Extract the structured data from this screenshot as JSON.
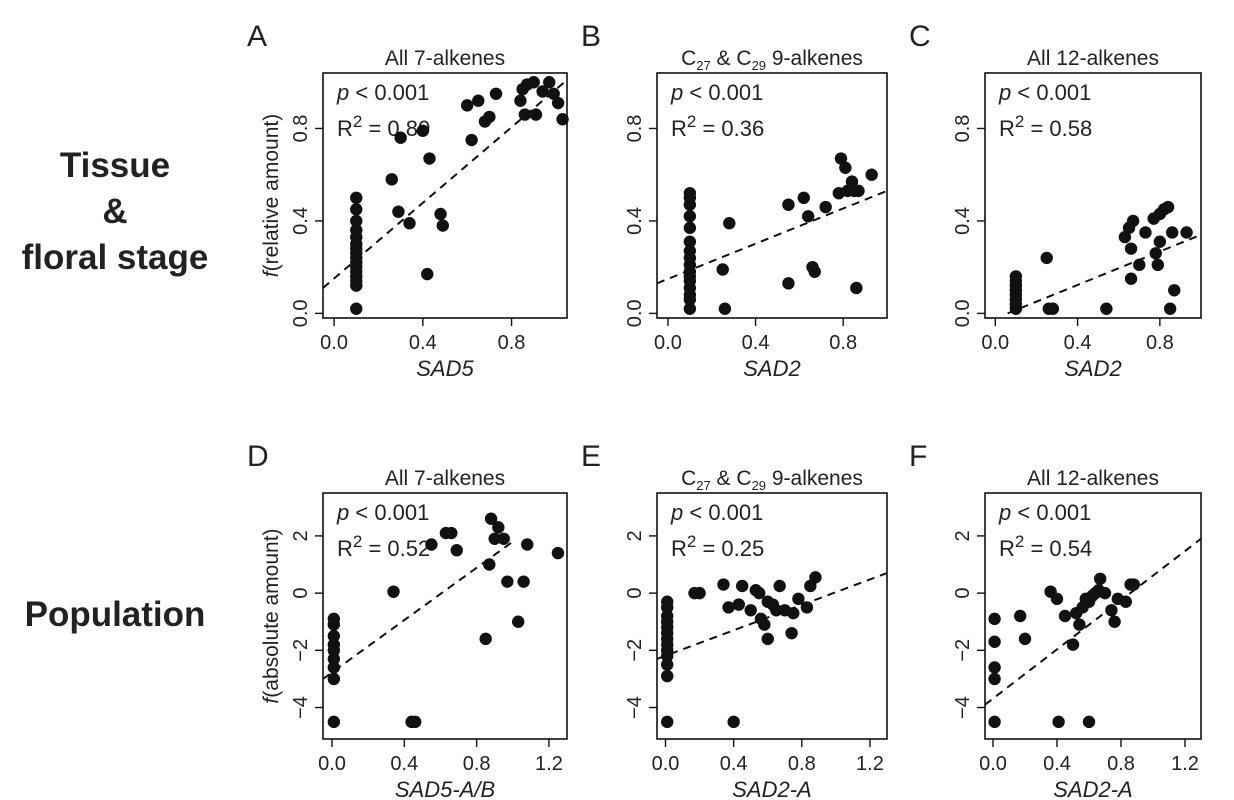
{
  "row_labels": {
    "top": [
      "Tissue",
      "&",
      "floral stage"
    ],
    "bottom": "Population"
  },
  "chart_data": [
    {
      "type": "scatter",
      "panel": "A",
      "title": "All 7-alkenes",
      "xlabel": "SAD5",
      "ylabel": "f(relative amount)",
      "xlim": [
        -0.05,
        1.05
      ],
      "ylim": [
        -0.02,
        1.04
      ],
      "xticks": [
        0.0,
        0.4,
        0.8
      ],
      "xtick_labels": [
        "0.0",
        "0.4",
        "0.8"
      ],
      "yticks": [
        0.0,
        0.4,
        0.8
      ],
      "ytick_labels": [
        "0.0",
        "0.4",
        "0.8"
      ],
      "stats": {
        "p_prefix": "p",
        "p_text": "<  0.001",
        "r2_label": "R",
        "r2_sup": "2",
        "r2_value": "= 0.80"
      },
      "fit": {
        "x": [
          -0.05,
          1.05
        ],
        "y": [
          0.11,
          1.01
        ]
      },
      "points": [
        [
          0.1,
          0.02
        ],
        [
          0.1,
          0.12
        ],
        [
          0.1,
          0.14
        ],
        [
          0.1,
          0.16
        ],
        [
          0.1,
          0.18
        ],
        [
          0.1,
          0.2
        ],
        [
          0.1,
          0.22
        ],
        [
          0.1,
          0.24
        ],
        [
          0.1,
          0.26
        ],
        [
          0.1,
          0.28
        ],
        [
          0.1,
          0.3
        ],
        [
          0.1,
          0.33
        ],
        [
          0.1,
          0.36
        ],
        [
          0.1,
          0.4
        ],
        [
          0.1,
          0.45
        ],
        [
          0.1,
          0.5
        ],
        [
          0.26,
          0.58
        ],
        [
          0.29,
          0.44
        ],
        [
          0.3,
          0.76
        ],
        [
          0.34,
          0.39
        ],
        [
          0.4,
          0.79
        ],
        [
          0.42,
          0.17
        ],
        [
          0.43,
          0.67
        ],
        [
          0.48,
          0.43
        ],
        [
          0.49,
          0.38
        ],
        [
          0.6,
          0.9
        ],
        [
          0.62,
          0.75
        ],
        [
          0.65,
          0.92
        ],
        [
          0.68,
          0.83
        ],
        [
          0.7,
          0.85
        ],
        [
          0.73,
          0.95
        ],
        [
          0.84,
          0.92
        ],
        [
          0.85,
          0.97
        ],
        [
          0.86,
          0.86
        ],
        [
          0.87,
          0.99
        ],
        [
          0.9,
          1.0
        ],
        [
          0.91,
          0.86
        ],
        [
          0.94,
          0.96
        ],
        [
          0.97,
          1.0
        ],
        [
          0.99,
          0.95
        ],
        [
          1.01,
          0.91
        ],
        [
          1.03,
          0.84
        ]
      ]
    },
    {
      "type": "scatter",
      "panel": "B",
      "title_parts": [
        "C",
        "27",
        " & C",
        "29",
        " 9-alkenes"
      ],
      "xlabel": "SAD2",
      "ylabel": "",
      "xlim": [
        -0.05,
        1.0
      ],
      "ylim": [
        -0.02,
        1.04
      ],
      "xticks": [
        0.0,
        0.4,
        0.8
      ],
      "xtick_labels": [
        "0.0",
        "0.4",
        "0.8"
      ],
      "yticks": [
        0.0,
        0.4,
        0.8
      ],
      "ytick_labels": [
        "0.0",
        "0.4",
        "0.8"
      ],
      "stats": {
        "p_prefix": "p",
        "p_text": "<  0.001",
        "r2_label": "R",
        "r2_sup": "2",
        "r2_value": "= 0.36"
      },
      "fit": {
        "x": [
          -0.05,
          1.0
        ],
        "y": [
          0.13,
          0.53
        ]
      },
      "points": [
        [
          0.1,
          0.02
        ],
        [
          0.1,
          0.06
        ],
        [
          0.1,
          0.08
        ],
        [
          0.1,
          0.11
        ],
        [
          0.1,
          0.14
        ],
        [
          0.1,
          0.16
        ],
        [
          0.1,
          0.18
        ],
        [
          0.1,
          0.21
        ],
        [
          0.1,
          0.24
        ],
        [
          0.1,
          0.27
        ],
        [
          0.1,
          0.31
        ],
        [
          0.1,
          0.37
        ],
        [
          0.1,
          0.42
        ],
        [
          0.1,
          0.47
        ],
        [
          0.1,
          0.5
        ],
        [
          0.1,
          0.52
        ],
        [
          0.25,
          0.19
        ],
        [
          0.26,
          0.02
        ],
        [
          0.28,
          0.39
        ],
        [
          0.55,
          0.13
        ],
        [
          0.55,
          0.47
        ],
        [
          0.62,
          0.5
        ],
        [
          0.64,
          0.42
        ],
        [
          0.66,
          0.2
        ],
        [
          0.67,
          0.18
        ],
        [
          0.72,
          0.46
        ],
        [
          0.78,
          0.52
        ],
        [
          0.79,
          0.67
        ],
        [
          0.81,
          0.63
        ],
        [
          0.82,
          0.53
        ],
        [
          0.84,
          0.57
        ],
        [
          0.85,
          0.53
        ],
        [
          0.86,
          0.11
        ],
        [
          0.87,
          0.53
        ],
        [
          0.93,
          0.6
        ]
      ]
    },
    {
      "type": "scatter",
      "panel": "C",
      "title": "All 12-alkenes",
      "xlabel": "SAD2",
      "ylabel": "",
      "xlim": [
        -0.05,
        1.0
      ],
      "ylim": [
        -0.02,
        1.04
      ],
      "xticks": [
        0.0,
        0.4,
        0.8
      ],
      "xtick_labels": [
        "0.0",
        "0.4",
        "0.8"
      ],
      "yticks": [
        0.0,
        0.4,
        0.8
      ],
      "ytick_labels": [
        "0.0",
        "0.4",
        "0.8"
      ],
      "stats": {
        "p_prefix": "p",
        "p_text": "<  0.001",
        "r2_label": "R",
        "r2_sup": "2",
        "r2_value": "= 0.58"
      },
      "fit": {
        "x": [
          0.06,
          1.0
        ],
        "y": [
          0.0,
          0.34
        ]
      },
      "points": [
        [
          0.1,
          0.02
        ],
        [
          0.1,
          0.04
        ],
        [
          0.1,
          0.06
        ],
        [
          0.1,
          0.08
        ],
        [
          0.1,
          0.1
        ],
        [
          0.1,
          0.12
        ],
        [
          0.1,
          0.14
        ],
        [
          0.1,
          0.16
        ],
        [
          0.25,
          0.24
        ],
        [
          0.26,
          0.02
        ],
        [
          0.28,
          0.02
        ],
        [
          0.54,
          0.02
        ],
        [
          0.63,
          0.33
        ],
        [
          0.65,
          0.37
        ],
        [
          0.66,
          0.28
        ],
        [
          0.66,
          0.15
        ],
        [
          0.67,
          0.4
        ],
        [
          0.7,
          0.21
        ],
        [
          0.73,
          0.35
        ],
        [
          0.77,
          0.41
        ],
        [
          0.78,
          0.26
        ],
        [
          0.79,
          0.21
        ],
        [
          0.8,
          0.43
        ],
        [
          0.8,
          0.31
        ],
        [
          0.82,
          0.45
        ],
        [
          0.84,
          0.46
        ],
        [
          0.85,
          0.02
        ],
        [
          0.86,
          0.35
        ],
        [
          0.87,
          0.1
        ],
        [
          0.93,
          0.35
        ]
      ]
    },
    {
      "type": "scatter",
      "panel": "D",
      "title": "All 7-alkenes",
      "xlabel": "SAD5-A/B",
      "ylabel": "f(absolute amount)",
      "xlim": [
        -0.05,
        1.3
      ],
      "ylim": [
        -5.1,
        3.5
      ],
      "xticks": [
        0.0,
        0.4,
        0.8,
        1.2
      ],
      "xtick_labels": [
        "0.0",
        "0.4",
        "0.8",
        "1.2"
      ],
      "yticks": [
        -4,
        -2,
        0,
        2
      ],
      "ytick_labels": [
        "−4",
        "−2",
        "0",
        "2"
      ],
      "stats": {
        "p_prefix": "p",
        "p_text": "<  0.001",
        "r2_label": "R",
        "r2_sup": "2",
        "r2_value": "= 0.52"
      },
      "fit": {
        "x": [
          -0.05,
          1.0
        ],
        "y": [
          -3.0,
          1.8
        ]
      },
      "points": [
        [
          0.01,
          -0.9
        ],
        [
          0.01,
          -1.1
        ],
        [
          0.01,
          -1.5
        ],
        [
          0.01,
          -1.8
        ],
        [
          0.01,
          -2.0
        ],
        [
          0.01,
          -2.3
        ],
        [
          0.01,
          -2.6
        ],
        [
          0.01,
          -3.0
        ],
        [
          0.01,
          -4.5
        ],
        [
          0.34,
          0.05
        ],
        [
          0.44,
          -4.5
        ],
        [
          0.46,
          -4.5
        ],
        [
          0.55,
          1.7
        ],
        [
          0.63,
          2.1
        ],
        [
          0.66,
          2.1
        ],
        [
          0.69,
          1.5
        ],
        [
          0.85,
          -1.6
        ],
        [
          0.87,
          1.0
        ],
        [
          0.88,
          2.6
        ],
        [
          0.9,
          1.9
        ],
        [
          0.92,
          2.3
        ],
        [
          0.95,
          1.9
        ],
        [
          0.97,
          0.4
        ],
        [
          1.03,
          -1.0
        ],
        [
          1.06,
          0.4
        ],
        [
          1.08,
          1.7
        ],
        [
          1.25,
          1.4
        ]
      ]
    },
    {
      "type": "scatter",
      "panel": "E",
      "title_parts": [
        "C",
        "27",
        " & C",
        "29",
        " 9-alkenes"
      ],
      "xlabel": "SAD2-A",
      "ylabel": "",
      "xlim": [
        -0.05,
        1.3
      ],
      "ylim": [
        -5.1,
        3.5
      ],
      "xticks": [
        0.0,
        0.4,
        0.8,
        1.2
      ],
      "xtick_labels": [
        "0.0",
        "0.4",
        "0.8",
        "1.2"
      ],
      "yticks": [
        -4,
        -2,
        0,
        2
      ],
      "ytick_labels": [
        "−4",
        "−2",
        "0",
        "2"
      ],
      "stats": {
        "p_prefix": "p",
        "p_text": "<  0.001",
        "r2_label": "R",
        "r2_sup": "2",
        "r2_value": "= 0.25"
      },
      "fit": {
        "x": [
          -0.05,
          1.3
        ],
        "y": [
          -2.3,
          0.7
        ]
      },
      "points": [
        [
          0.01,
          -0.3
        ],
        [
          0.01,
          -0.5
        ],
        [
          0.01,
          -0.8
        ],
        [
          0.01,
          -1.0
        ],
        [
          0.01,
          -1.2
        ],
        [
          0.01,
          -1.4
        ],
        [
          0.01,
          -1.6
        ],
        [
          0.01,
          -1.8
        ],
        [
          0.01,
          -2.0
        ],
        [
          0.01,
          -2.2
        ],
        [
          0.01,
          -2.5
        ],
        [
          0.01,
          -2.9
        ],
        [
          0.01,
          -4.5
        ],
        [
          0.17,
          0.0
        ],
        [
          0.2,
          0.0
        ],
        [
          0.34,
          0.3
        ],
        [
          0.37,
          -0.5
        ],
        [
          0.4,
          -4.5
        ],
        [
          0.43,
          -0.4
        ],
        [
          0.45,
          0.25
        ],
        [
          0.5,
          -0.6
        ],
        [
          0.53,
          0.1
        ],
        [
          0.55,
          0.0
        ],
        [
          0.56,
          -0.9
        ],
        [
          0.58,
          -1.1
        ],
        [
          0.6,
          -1.6
        ],
        [
          0.6,
          -0.3
        ],
        [
          0.63,
          -0.4
        ],
        [
          0.65,
          -0.6
        ],
        [
          0.67,
          0.25
        ],
        [
          0.7,
          -0.6
        ],
        [
          0.74,
          -1.4
        ],
        [
          0.75,
          -0.7
        ],
        [
          0.78,
          -0.2
        ],
        [
          0.83,
          -0.5
        ],
        [
          0.85,
          0.25
        ],
        [
          0.88,
          0.55
        ]
      ]
    },
    {
      "type": "scatter",
      "panel": "F",
      "title": "All 12-alkenes",
      "xlabel": "SAD2-A",
      "ylabel": "",
      "xlim": [
        -0.05,
        1.3
      ],
      "ylim": [
        -5.1,
        3.5
      ],
      "xticks": [
        0.0,
        0.4,
        0.8,
        1.2
      ],
      "xtick_labels": [
        "0.0",
        "0.4",
        "0.8",
        "1.2"
      ],
      "yticks": [
        -4,
        -2,
        0,
        2
      ],
      "ytick_labels": [
        "−4",
        "−2",
        "0",
        "2"
      ],
      "stats": {
        "p_prefix": "p",
        "p_text": "<  0.001",
        "r2_label": "R",
        "r2_sup": "2",
        "r2_value": "= 0.54"
      },
      "fit": {
        "x": [
          -0.05,
          1.3
        ],
        "y": [
          -3.9,
          1.9
        ]
      },
      "points": [
        [
          0.01,
          -0.9
        ],
        [
          0.01,
          -1.7
        ],
        [
          0.01,
          -2.6
        ],
        [
          0.01,
          -3.0
        ],
        [
          0.01,
          -4.5
        ],
        [
          0.17,
          -0.8
        ],
        [
          0.2,
          -1.6
        ],
        [
          0.36,
          0.05
        ],
        [
          0.4,
          -0.2
        ],
        [
          0.41,
          -4.5
        ],
        [
          0.45,
          -0.8
        ],
        [
          0.5,
          -1.8
        ],
        [
          0.52,
          -0.7
        ],
        [
          0.54,
          -1.1
        ],
        [
          0.56,
          -0.5
        ],
        [
          0.58,
          -0.2
        ],
        [
          0.6,
          -4.5
        ],
        [
          0.6,
          -0.3
        ],
        [
          0.62,
          -0.1
        ],
        [
          0.64,
          0.0
        ],
        [
          0.66,
          0.1
        ],
        [
          0.67,
          0.5
        ],
        [
          0.7,
          0.0
        ],
        [
          0.74,
          -0.6
        ],
        [
          0.76,
          -1.0
        ],
        [
          0.78,
          -0.2
        ],
        [
          0.83,
          -0.3
        ],
        [
          0.86,
          0.3
        ],
        [
          0.88,
          0.3
        ]
      ]
    }
  ]
}
